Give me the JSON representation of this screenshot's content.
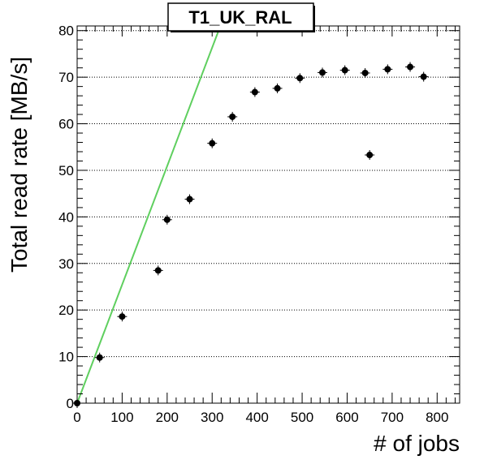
{
  "chart_data": {
    "type": "scatter",
    "title": "T1_UK_RAL",
    "xlabel": "# of jobs",
    "ylabel": "Total read rate [MB/s]",
    "xlim": [
      0,
      850
    ],
    "ylim": [
      0,
      81
    ],
    "x_ticks": [
      0,
      100,
      200,
      300,
      400,
      500,
      600,
      700,
      800
    ],
    "y_ticks": [
      0,
      10,
      20,
      30,
      40,
      50,
      60,
      70,
      80
    ],
    "grid": "horizontal-dotted",
    "points": [
      {
        "x": 0,
        "y": 0
      },
      {
        "x": 50,
        "y": 9.8
      },
      {
        "x": 100,
        "y": 18.6
      },
      {
        "x": 180,
        "y": 28.5
      },
      {
        "x": 200,
        "y": 39.4
      },
      {
        "x": 250,
        "y": 43.8
      },
      {
        "x": 300,
        "y": 55.8
      },
      {
        "x": 345,
        "y": 61.5
      },
      {
        "x": 395,
        "y": 66.8
      },
      {
        "x": 445,
        "y": 67.6
      },
      {
        "x": 495,
        "y": 69.8
      },
      {
        "x": 545,
        "y": 71.0
      },
      {
        "x": 595,
        "y": 71.5
      },
      {
        "x": 640,
        "y": 70.9
      },
      {
        "x": 650,
        "y": 53.3
      },
      {
        "x": 690,
        "y": 71.7
      },
      {
        "x": 740,
        "y": 72.2
      },
      {
        "x": 770,
        "y": 70.1
      }
    ],
    "fit_line": {
      "x1": 0,
      "y1": 0,
      "x2": 318.3,
      "y2": 81,
      "color": "#5fcf5f"
    },
    "marker_color": "#000000"
  }
}
